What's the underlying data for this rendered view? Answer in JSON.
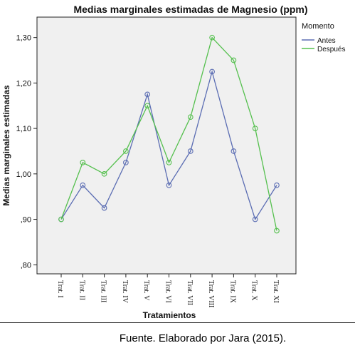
{
  "chart_data": {
    "type": "line",
    "title": "Medias marginales estimadas de Magnesio (ppm)",
    "xlabel": "Tratamientos",
    "ylabel": "Medias marginales estimadas",
    "categories": [
      "Trat. I",
      "Trat. II",
      "Trat. III",
      "Trat. IV",
      "Trat. V",
      "Trat. VI",
      "Trat. VII",
      "Trat. VIII",
      "Trat. IX",
      "Trat. X",
      "Trat. XI"
    ],
    "yticks": [
      0.8,
      0.9,
      1.0,
      1.1,
      1.2,
      1.3
    ],
    "ytick_labels": [
      ",80",
      ",90",
      "1,00",
      "1,10",
      "1,20",
      "1,30"
    ],
    "ylim": [
      0.78,
      1.345
    ],
    "grid": false,
    "legend": {
      "title": "Momento",
      "position": "right"
    },
    "series": [
      {
        "name": "Antes",
        "color": "#5b6db3",
        "values": [
          0.9,
          0.975,
          0.925,
          1.025,
          1.175,
          0.975,
          1.05,
          1.225,
          1.05,
          0.9,
          0.975
        ]
      },
      {
        "name": "Después",
        "color": "#55c04e",
        "values": [
          0.9,
          1.025,
          1.0,
          1.05,
          1.15,
          1.025,
          1.125,
          1.3,
          1.25,
          1.1,
          0.875
        ]
      }
    ]
  },
  "caption": "Fuente. Elaborado por Jara (2015).",
  "colors": {
    "plot_background": "#f0f0f0"
  }
}
